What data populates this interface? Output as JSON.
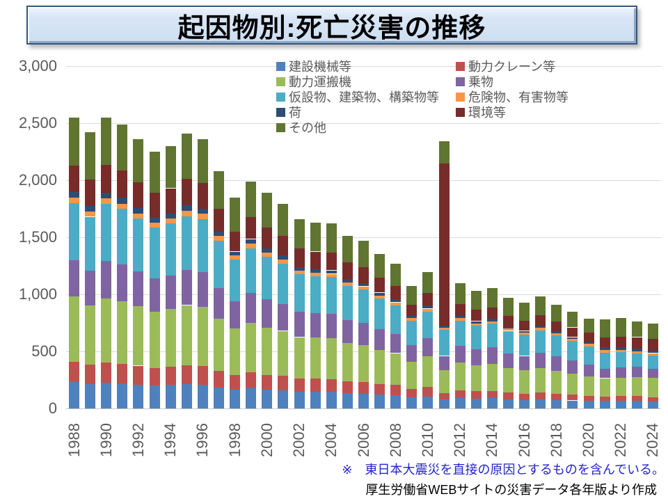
{
  "title": "起因物別:死亡災害の推移",
  "notes": {
    "earthquake_note": "※　東日本大震災を直接の原因とするものを含んでいる。",
    "source_note": "厚生労働省WEBサイトの災害データ各年版より作成"
  },
  "colors": {
    "note_blue": "#2323CC",
    "note_black": "#000000",
    "axis_text": "#595959",
    "gridline": "#D9D9D9",
    "title_box_fill": "#D6E4F6",
    "title_box_border": "#34577F"
  },
  "axis": {
    "y_ticks": [
      {
        "label": "0",
        "value": 0
      },
      {
        "label": "500",
        "value": 500
      },
      {
        "label": "1,000",
        "value": 1000
      },
      {
        "label": "1,500",
        "value": 1500
      },
      {
        "label": "2,000",
        "value": 2000
      },
      {
        "label": "2,500",
        "value": 2500
      },
      {
        "label": "3,000",
        "value": 3000
      }
    ],
    "x_tick_years": [
      "1988",
      "1990",
      "1992",
      "1994",
      "1996",
      "1998",
      "2000",
      "2002",
      "2004",
      "2006",
      "2008",
      "2010",
      "2012",
      "2014",
      "2016",
      "2018",
      "2020",
      "2022",
      "2024"
    ]
  },
  "legend": {
    "items": [
      {
        "label": "建設機械等",
        "color": "#4F81BD"
      },
      {
        "label": "動力クレーン等",
        "color": "#C0504D"
      },
      {
        "label": "動力運搬機",
        "color": "#9BBB59"
      },
      {
        "label": "乗物",
        "color": "#8064A2"
      },
      {
        "label": "仮設物、建築物、構築物等",
        "color": "#4BACC6"
      },
      {
        "label": "危険物、有害物等",
        "color": "#F79646"
      },
      {
        "label": "荷",
        "color": "#2C4D75"
      },
      {
        "label": "環境等",
        "color": "#772C2A"
      },
      {
        "label": "その他",
        "color": "#5F7530"
      }
    ]
  },
  "chart_data": {
    "type": "bar",
    "stacked": true,
    "title": "起因物別:死亡災害の推移",
    "xlabel": "",
    "ylabel": "",
    "ylim": [
      0,
      3000
    ],
    "y_step": 500,
    "grid": true,
    "legend_position": "top-inside",
    "x": [
      1988,
      1989,
      1990,
      1991,
      1992,
      1993,
      1994,
      1995,
      1996,
      1997,
      1998,
      1999,
      2000,
      2001,
      2002,
      2003,
      2004,
      2005,
      2006,
      2007,
      2008,
      2009,
      2010,
      2011,
      2012,
      2013,
      2014,
      2015,
      2016,
      2017,
      2018,
      2019,
      2020,
      2021,
      2022,
      2023,
      2024
    ],
    "series": [
      {
        "name": "建設機械等",
        "color": "#4F81BD",
        "values": [
          230,
          215,
          225,
          220,
          210,
          200,
          205,
          215,
          210,
          185,
          165,
          175,
          165,
          160,
          145,
          145,
          145,
          135,
          130,
          120,
          115,
          95,
          105,
          80,
          90,
          85,
          90,
          80,
          75,
          80,
          75,
          70,
          65,
          65,
          65,
          65,
          60
        ]
      },
      {
        "name": "動力クレーン等",
        "color": "#C0504D",
        "values": [
          180,
          170,
          175,
          170,
          165,
          155,
          160,
          165,
          165,
          145,
          130,
          140,
          130,
          125,
          115,
          115,
          110,
          105,
          100,
          95,
          90,
          75,
          85,
          55,
          70,
          65,
          65,
          60,
          55,
          60,
          55,
          50,
          45,
          40,
          45,
          45,
          40
        ]
      },
      {
        "name": "動力運搬機",
        "color": "#9BBB59",
        "values": [
          570,
          520,
          565,
          550,
          520,
          495,
          505,
          525,
          515,
          455,
          405,
          435,
          415,
          395,
          365,
          360,
          360,
          335,
          325,
          300,
          280,
          240,
          265,
          200,
          245,
          230,
          235,
          215,
          205,
          215,
          200,
          185,
          170,
          160,
          160,
          165,
          170
        ]
      },
      {
        "name": "乗物",
        "color": "#8064A2",
        "values": [
          320,
          300,
          325,
          320,
          305,
          290,
          295,
          310,
          305,
          270,
          240,
          260,
          245,
          235,
          220,
          215,
          215,
          200,
          195,
          180,
          170,
          145,
          160,
          125,
          145,
          140,
          145,
          130,
          125,
          135,
          125,
          115,
          105,
          85,
          90,
          90,
          80
        ]
      },
      {
        "name": "仮設物、建築物、構築物等",
        "color": "#4BACC6",
        "values": [
          500,
          475,
          500,
          490,
          465,
          445,
          455,
          470,
          465,
          415,
          365,
          395,
          375,
          355,
          330,
          325,
          320,
          300,
          295,
          270,
          250,
          215,
          235,
          230,
          220,
          205,
          210,
          195,
          185,
          195,
          185,
          170,
          160,
          140,
          135,
          120,
          115
        ]
      },
      {
        "name": "危険物、有害物等",
        "color": "#F79646",
        "values": [
          45,
          45,
          50,
          45,
          45,
          45,
          45,
          45,
          45,
          40,
          35,
          40,
          35,
          35,
          30,
          30,
          30,
          30,
          25,
          25,
          25,
          20,
          25,
          20,
          20,
          20,
          20,
          20,
          20,
          20,
          20,
          20,
          20,
          20,
          20,
          15,
          20
        ]
      },
      {
        "name": "荷",
        "color": "#2C4D75",
        "values": [
          50,
          50,
          50,
          50,
          45,
          45,
          45,
          50,
          45,
          40,
          35,
          40,
          40,
          35,
          35,
          30,
          30,
          30,
          30,
          25,
          25,
          20,
          25,
          15,
          20,
          20,
          20,
          15,
          15,
          15,
          15,
          15,
          15,
          25,
          20,
          25,
          20
        ]
      },
      {
        "name": "環境等",
        "color": "#772C2A",
        "values": [
          235,
          230,
          245,
          240,
          225,
          215,
          220,
          230,
          225,
          200,
          175,
          190,
          180,
          170,
          160,
          155,
          155,
          145,
          140,
          130,
          120,
          100,
          110,
          1420,
          105,
          100,
          100,
          95,
          90,
          95,
          90,
          85,
          85,
          85,
          95,
          100,
          105
        ]
      },
      {
        "name": "その他",
        "color": "#5F7530",
        "values": [
          420,
          415,
          415,
          405,
          380,
          360,
          370,
          400,
          385,
          330,
          295,
          315,
          305,
          280,
          260,
          255,
          255,
          235,
          230,
          210,
          195,
          165,
          185,
          195,
          180,
          165,
          170,
          160,
          160,
          165,
          145,
          135,
          120,
          160,
          160,
          135,
          135
        ]
      }
    ],
    "totals": [
      2550,
      2420,
      2550,
      2490,
      2360,
      2250,
      2300,
      2410,
      2360,
      2080,
      1845,
      1990,
      1890,
      1790,
      1660,
      1630,
      1620,
      1515,
      1470,
      1355,
      1270,
      1075,
      1195,
      2340,
      1095,
      1030,
      1055,
      970,
      930,
      980,
      910,
      845,
      785,
      780,
      790,
      760,
      745
    ]
  }
}
